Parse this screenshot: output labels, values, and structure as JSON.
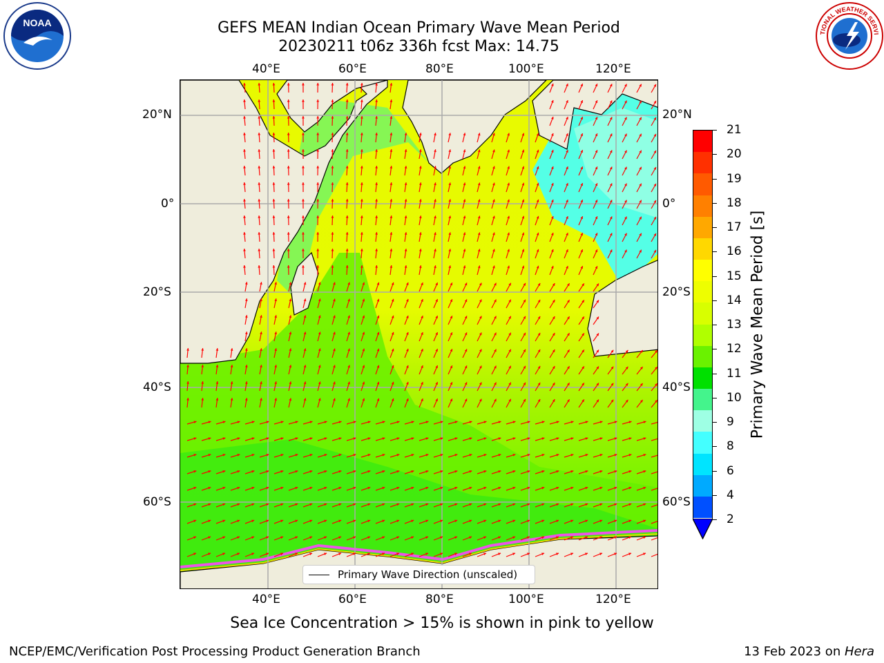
{
  "title": {
    "line1": "GEFS MEAN Indian Ocean Primary Wave Mean Period",
    "line2": "20230211 t06z 336h fcst   Max: 14.75"
  },
  "logos": {
    "left": {
      "icon": "noaa-logo",
      "text": "NOAA"
    },
    "right": {
      "icon": "national-weather-service-logo",
      "text": "NATIONAL WEATHER SERVICE"
    }
  },
  "map": {
    "lon_ticks": [
      "40°E",
      "60°E",
      "80°E",
      "100°E",
      "120°E"
    ],
    "lat_ticks_left": [
      "20°N",
      "0°",
      "20°S",
      "40°S",
      "60°S"
    ],
    "lat_ticks_right": [
      "20°N",
      "0°",
      "20°S",
      "40°S",
      "60°S"
    ],
    "extent": {
      "lon": [
        20,
        130
      ],
      "lat": [
        -75,
        28
      ]
    },
    "arrow_color": "#ff0000",
    "land_color": "#efeddc",
    "legend_label": "Primary Wave Direction (unscaled)"
  },
  "colorbar": {
    "label": "Primary Wave Mean Period [s]",
    "ticks": [
      "21",
      "20",
      "19",
      "18",
      "17",
      "16",
      "15",
      "14",
      "13",
      "12",
      "11",
      "10",
      "9",
      "8",
      "6",
      "4",
      "2"
    ],
    "colors": [
      "#ff0000",
      "#ff3000",
      "#ff5a00",
      "#ff8000",
      "#ffa800",
      "#ffd800",
      "#ffff00",
      "#eefe00",
      "#d8ff00",
      "#b0ff00",
      "#6af200",
      "#00e000",
      "#44f48c",
      "#9effe4",
      "#44ffff",
      "#00e4ff",
      "#00aaff",
      "#0050ff"
    ],
    "under_color": "#0000ff"
  },
  "ice_note": "Sea Ice Concentration > 15% is shown in pink to yellow",
  "footer": {
    "left": "NCEP/EMC/Verification Post Processing Product Generation Branch",
    "right_date": "13 Feb 2023 on ",
    "right_host": "Hera"
  }
}
